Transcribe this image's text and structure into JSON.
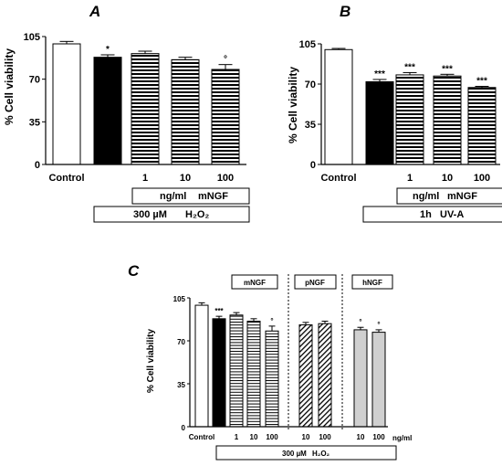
{
  "chart_data": [
    {
      "panel": "A",
      "type": "bar",
      "ylabel": "% Cell viability",
      "ylim": [
        0,
        105
      ],
      "yticks": [
        0,
        35,
        70,
        105
      ],
      "x_tick_labels": [
        "Control",
        "",
        "1",
        "10",
        "100"
      ],
      "values": [
        99,
        88,
        91,
        86,
        78
      ],
      "errors": [
        2,
        2,
        2,
        2,
        4
      ],
      "fills": [
        "white",
        "black",
        "hstripe",
        "hstripe",
        "hstripe"
      ],
      "significance": [
        "",
        "*",
        "",
        "",
        "°"
      ],
      "bracket_labels": [
        {
          "lines": [
            "ng/ml",
            "mNGF"
          ]
        },
        {
          "lines": [
            "300 µM",
            "H₂O₂"
          ]
        }
      ]
    },
    {
      "panel": "B",
      "type": "bar",
      "ylabel": "% Cell viability",
      "ylim": [
        0,
        105
      ],
      "yticks": [
        0,
        35,
        70,
        105
      ],
      "x_tick_labels": [
        "Control",
        "",
        "1",
        "10",
        "100"
      ],
      "values": [
        100,
        72,
        78,
        77,
        67
      ],
      "errors": [
        1,
        2,
        2,
        1.5,
        1
      ],
      "fills": [
        "white",
        "black",
        "hstripe",
        "hstripe",
        "hstripe"
      ],
      "significance": [
        "",
        "***",
        "***",
        "***",
        "***"
      ],
      "bracket_labels": [
        {
          "lines": [
            "ng/ml",
            "mNGF"
          ]
        },
        {
          "lines": [
            "1h",
            "UV-A"
          ]
        }
      ]
    },
    {
      "panel": "C",
      "type": "bar",
      "ylabel": "% Cell viability",
      "ylim": [
        0,
        105
      ],
      "yticks": [
        0,
        35,
        70,
        105
      ],
      "x_tick_labels": [
        "Control",
        "",
        "1",
        "10",
        "100",
        "10",
        "100",
        "10",
        "100"
      ],
      "x_unit": "ng/ml",
      "groups": [
        "mNGF",
        "pNGF",
        "hNGF"
      ],
      "values": [
        99,
        88,
        91,
        86,
        78,
        83,
        84,
        79,
        77
      ],
      "errors": [
        2,
        2,
        2,
        2,
        4,
        2,
        2,
        2,
        2
      ],
      "fills": [
        "white",
        "black",
        "hstripe",
        "hstripe",
        "hstripe",
        "diag",
        "diag",
        "grey",
        "grey"
      ],
      "significance": [
        "",
        "***",
        "",
        "",
        "°",
        "",
        "",
        "°",
        "°"
      ],
      "bracket_labels": [
        {
          "lines": [
            "300 µM",
            "H₂O₂"
          ]
        }
      ]
    }
  ],
  "colors": {
    "bar_black": "#000000",
    "bar_white": "#ffffff",
    "bar_grey": "#d0d0d0",
    "stroke": "#000000"
  }
}
